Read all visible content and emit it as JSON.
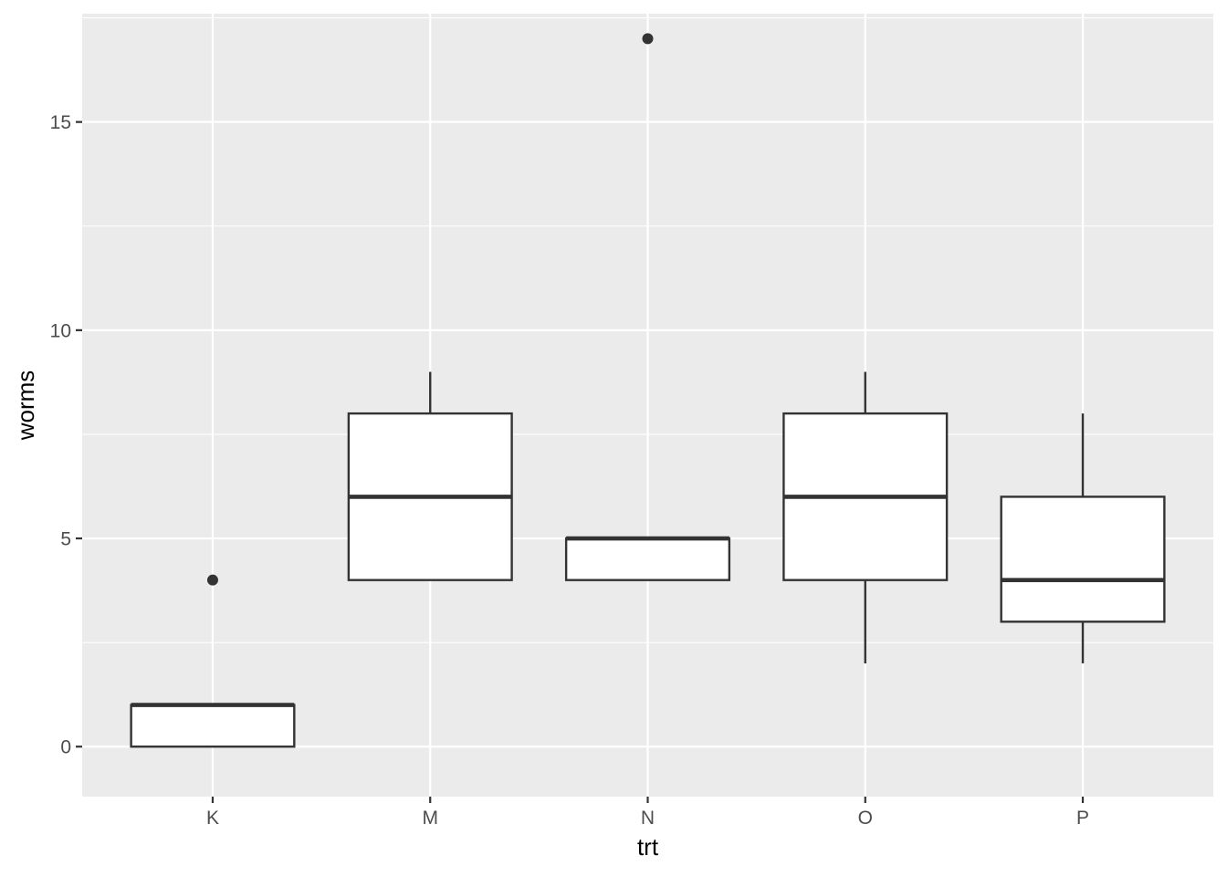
{
  "chart_data": {
    "type": "boxplot",
    "xlabel": "trt",
    "ylabel": "worms",
    "categories": [
      "K",
      "M",
      "N",
      "O",
      "P"
    ],
    "ylim": [
      -1.2,
      17.6
    ],
    "y_ticks": [
      0,
      5,
      10,
      15
    ],
    "y_tick_labels": [
      "0",
      "5",
      "10",
      "15"
    ],
    "grid": true,
    "boxes": [
      {
        "category": "K",
        "whisker_low": 0,
        "q1": 0,
        "median": 1,
        "q3": 1,
        "whisker_high": 1,
        "outliers": [
          4
        ]
      },
      {
        "category": "M",
        "whisker_low": 4,
        "q1": 4,
        "median": 6,
        "q3": 8,
        "whisker_high": 9,
        "outliers": []
      },
      {
        "category": "N",
        "whisker_low": 4,
        "q1": 4,
        "median": 5,
        "q3": 5,
        "whisker_high": 5,
        "outliers": [
          17
        ]
      },
      {
        "category": "O",
        "whisker_low": 2,
        "q1": 4,
        "median": 6,
        "q3": 8,
        "whisker_high": 9,
        "outliers": []
      },
      {
        "category": "P",
        "whisker_low": 2,
        "q1": 3,
        "median": 4,
        "q3": 6,
        "whisker_high": 8,
        "outliers": []
      }
    ],
    "colors": {
      "panel": "#ebebeb",
      "grid": "#ffffff",
      "box_fill": "#ffffff",
      "box_stroke": "#333333",
      "outlier": "#333333"
    }
  }
}
